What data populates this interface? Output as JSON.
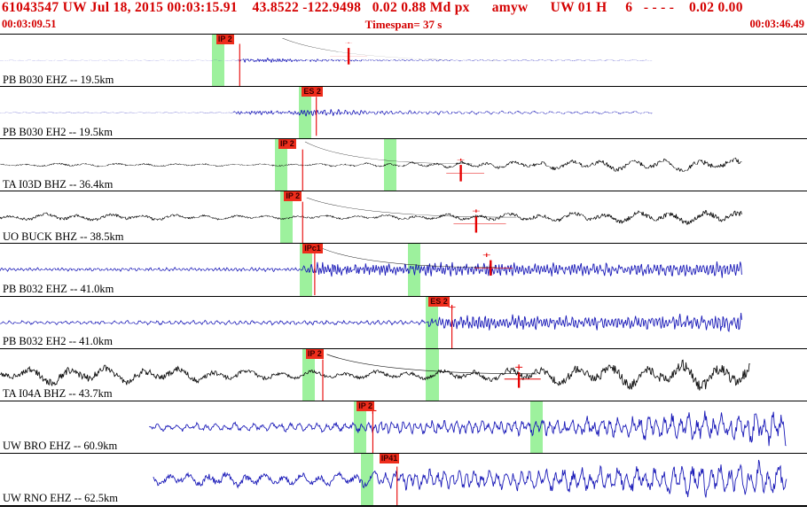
{
  "header": {
    "line1": "61043547 UW Jul 18, 2015 00:03:15.91    43.8522 -122.9498   0.02 0.88 Md px      amyw      UW 01 H     6   - - - -    0.02 0.00",
    "start_time": "00:03:09.51",
    "timespan": "Timespan=  37 s",
    "end_time": "00:03:46.49"
  },
  "colors": {
    "header_text": "#d40000",
    "trace_blue": "#1a1ab8",
    "trace_black": "#101010",
    "pick_band": "#9df19d",
    "flag_bg": "#ee2d1c",
    "flag_text": "#3a0000",
    "mark_red": "#e60000",
    "separator": "#000000",
    "background": "#ffffff"
  },
  "traces": [
    {
      "label": "PB B030 EHZ -- 19.5km",
      "color": "#1a1ab8",
      "seed": 11,
      "start": 0,
      "end": 0.808,
      "env": [
        [
          0,
          1.3
        ],
        [
          0.29,
          1.3
        ],
        [
          0.3,
          22
        ],
        [
          0.33,
          20
        ],
        [
          0.4,
          12
        ],
        [
          0.5,
          9
        ],
        [
          0.6,
          7
        ],
        [
          0.7,
          6
        ],
        [
          0.808,
          4
        ]
      ],
      "freq": [
        [
          0,
          0.1
        ],
        [
          0.29,
          0.1
        ],
        [
          0.3,
          0.38
        ],
        [
          0.42,
          0.3
        ],
        [
          0.55,
          0.16
        ],
        [
          0.7,
          0.09
        ],
        [
          0.808,
          0.07
        ]
      ],
      "bands": [
        {
          "x": 0.263,
          "w": 0.0155
        }
      ],
      "flags": [
        {
          "text": "IP 2",
          "x": 0.268
        }
      ],
      "marks": [
        {
          "type": "vline",
          "x": 0.297,
          "y1": 0.18,
          "y2": 1.0
        },
        {
          "type": "plus",
          "x": 0.432,
          "y": 0.16
        },
        {
          "type": "vtick",
          "x": 0.432,
          "y1": 0.26,
          "y2": 0.58
        },
        {
          "type": "hbar",
          "x1": 0.409,
          "x2": 0.455,
          "y": 0.42
        },
        {
          "type": "coda",
          "x1": 0.35,
          "y1": 0.07,
          "x2": 0.615,
          "y2": 0.5
        }
      ]
    },
    {
      "label": "PB B030 EH2 -- 19.5km",
      "color": "#1a1ab8",
      "seed": 22,
      "start": 0,
      "end": 0.808,
      "env": [
        [
          0,
          1.2
        ],
        [
          0.285,
          1.2
        ],
        [
          0.295,
          10
        ],
        [
          0.355,
          9
        ],
        [
          0.39,
          18
        ],
        [
          0.45,
          12
        ],
        [
          0.55,
          9
        ],
        [
          0.65,
          7
        ],
        [
          0.808,
          5
        ]
      ],
      "freq": [
        [
          0,
          0.1
        ],
        [
          0.285,
          0.1
        ],
        [
          0.3,
          0.34
        ],
        [
          0.45,
          0.22
        ],
        [
          0.6,
          0.12
        ],
        [
          0.808,
          0.08
        ]
      ],
      "bands": [
        {
          "x": 0.37,
          "w": 0.0155
        }
      ],
      "flags": [
        {
          "text": "ES 2",
          "x": 0.374
        }
      ],
      "marks": [
        {
          "type": "vline",
          "x": 0.392,
          "y1": 0.2,
          "y2": 0.95
        },
        {
          "type": "plus",
          "x": 0.392,
          "y": 0.18
        }
      ]
    },
    {
      "label": "TA I03D BHZ -- 36.4km",
      "color": "#101010",
      "seed": 33,
      "start": 0,
      "end": 0.92,
      "env": [
        [
          0,
          3
        ],
        [
          0.08,
          6
        ],
        [
          0.2,
          5
        ],
        [
          0.32,
          3.5
        ],
        [
          0.4,
          5
        ],
        [
          0.5,
          8
        ],
        [
          0.6,
          11
        ],
        [
          0.72,
          16
        ],
        [
          0.82,
          19
        ],
        [
          0.92,
          20
        ]
      ],
      "freq": [
        [
          0,
          0.03
        ],
        [
          0.35,
          0.03
        ],
        [
          0.45,
          0.04
        ],
        [
          0.7,
          0.03
        ],
        [
          0.92,
          0.024
        ]
      ],
      "bands": [
        {
          "x": 0.341,
          "w": 0.0155
        },
        {
          "x": 0.476,
          "w": 0.0155
        }
      ],
      "flags": [
        {
          "text": "IP 2",
          "x": 0.345
        }
      ],
      "marks": [
        {
          "type": "vline",
          "x": 0.375,
          "y1": 0.2,
          "y2": 1.0
        },
        {
          "type": "plus",
          "x": 0.571,
          "y": 0.4
        },
        {
          "type": "vtick",
          "x": 0.571,
          "y1": 0.5,
          "y2": 0.82
        },
        {
          "type": "hbar",
          "x1": 0.553,
          "x2": 0.6,
          "y": 0.66
        },
        {
          "type": "coda",
          "x1": 0.378,
          "y1": 0.05,
          "x2": 0.585,
          "y2": 0.48
        }
      ]
    },
    {
      "label": "UO BUCK BHZ -- 38.5km",
      "color": "#101010",
      "seed": 44,
      "start": 0,
      "end": 0.92,
      "env": [
        [
          0,
          6
        ],
        [
          0.06,
          9
        ],
        [
          0.18,
          8
        ],
        [
          0.3,
          5
        ],
        [
          0.42,
          4.5
        ],
        [
          0.55,
          7
        ],
        [
          0.68,
          11
        ],
        [
          0.8,
          14
        ],
        [
          0.92,
          17
        ]
      ],
      "freq": [
        [
          0,
          0.026
        ],
        [
          0.4,
          0.03
        ],
        [
          0.92,
          0.026
        ]
      ],
      "bands": [
        {
          "x": 0.347,
          "w": 0.0155
        }
      ],
      "flags": [
        {
          "text": "IP 2",
          "x": 0.352
        }
      ],
      "marks": [
        {
          "type": "vline",
          "x": 0.375,
          "y1": 0.2,
          "y2": 1.0
        },
        {
          "type": "plus",
          "x": 0.59,
          "y": 0.38
        },
        {
          "type": "vtick",
          "x": 0.59,
          "y1": 0.48,
          "y2": 0.8
        },
        {
          "type": "hbar",
          "x1": 0.562,
          "x2": 0.627,
          "y": 0.63
        },
        {
          "type": "coda",
          "x1": 0.38,
          "y1": 0.12,
          "x2": 0.64,
          "y2": 0.5
        }
      ]
    },
    {
      "label": "PB B032 EHZ -- 41.0km",
      "color": "#1a1ab8",
      "seed": 55,
      "start": 0,
      "end": 0.92,
      "env": [
        [
          0,
          3
        ],
        [
          0.37,
          3.5
        ],
        [
          0.395,
          13
        ],
        [
          0.45,
          10
        ],
        [
          0.55,
          12
        ],
        [
          0.62,
          14
        ],
        [
          0.72,
          11
        ],
        [
          0.82,
          12
        ],
        [
          0.92,
          15
        ]
      ],
      "freq": [
        [
          0,
          0.22
        ],
        [
          0.38,
          0.22
        ],
        [
          0.4,
          0.36
        ],
        [
          0.6,
          0.3
        ],
        [
          0.92,
          0.26
        ]
      ],
      "bands": [
        {
          "x": 0.371,
          "w": 0.0155
        },
        {
          "x": 0.505,
          "w": 0.0155
        }
      ],
      "flags": [
        {
          "text": "IPc1",
          "x": 0.375
        }
      ],
      "marks": [
        {
          "type": "vline",
          "x": 0.39,
          "y1": 0.18,
          "y2": 1.0
        },
        {
          "type": "plus",
          "x": 0.603,
          "y": 0.22
        },
        {
          "type": "vtick",
          "x": 0.608,
          "y1": 0.32,
          "y2": 0.62
        },
        {
          "type": "hbar",
          "x1": 0.588,
          "x2": 0.635,
          "y": 0.47
        },
        {
          "type": "coda",
          "x1": 0.395,
          "y1": 0.06,
          "x2": 0.615,
          "y2": 0.46
        }
      ]
    },
    {
      "label": "PB B032 EH2 -- 41.0km",
      "color": "#1a1ab8",
      "seed": 66,
      "start": 0,
      "end": 0.92,
      "env": [
        [
          0,
          2.5
        ],
        [
          0.3,
          3.5
        ],
        [
          0.52,
          3.5
        ],
        [
          0.545,
          9
        ],
        [
          0.6,
          12
        ],
        [
          0.7,
          10
        ],
        [
          0.8,
          11
        ],
        [
          0.92,
          15
        ]
      ],
      "freq": [
        [
          0,
          0.14
        ],
        [
          0.52,
          0.16
        ],
        [
          0.56,
          0.3
        ],
        [
          0.92,
          0.24
        ]
      ],
      "bands": [
        {
          "x": 0.527,
          "w": 0.0155
        }
      ],
      "flags": [
        {
          "text": "ES 2",
          "x": 0.531
        }
      ],
      "marks": [
        {
          "type": "vline",
          "x": 0.56,
          "y1": 0.22,
          "y2": 1.0
        },
        {
          "type": "plus",
          "x": 0.56,
          "y": 0.2
        }
      ]
    },
    {
      "label": "TA I04A BHZ -- 43.7km",
      "color": "#101010",
      "seed": 77,
      "start": 0,
      "end": 0.93,
      "env": [
        [
          0,
          8
        ],
        [
          0.07,
          13
        ],
        [
          0.18,
          12
        ],
        [
          0.3,
          7
        ],
        [
          0.42,
          5
        ],
        [
          0.52,
          6
        ],
        [
          0.62,
          9
        ],
        [
          0.72,
          14
        ],
        [
          0.82,
          18
        ],
        [
          0.93,
          20
        ]
      ],
      "freq": [
        [
          0,
          0.022
        ],
        [
          0.4,
          0.028
        ],
        [
          0.93,
          0.024
        ]
      ],
      "bands": [
        {
          "x": 0.375,
          "w": 0.0155
        },
        {
          "x": 0.528,
          "w": 0.0155
        }
      ],
      "flags": [
        {
          "text": "IP 2",
          "x": 0.379
        }
      ],
      "marks": [
        {
          "type": "vline",
          "x": 0.4,
          "y1": 0.2,
          "y2": 1.0
        },
        {
          "type": "plus",
          "x": 0.643,
          "y": 0.35
        },
        {
          "type": "vtick",
          "x": 0.643,
          "y1": 0.45,
          "y2": 0.75
        },
        {
          "type": "hbar",
          "x1": 0.625,
          "x2": 0.67,
          "y": 0.58
        },
        {
          "type": "coda",
          "x1": 0.405,
          "y1": 0.1,
          "x2": 0.665,
          "y2": 0.48
        }
      ]
    },
    {
      "label": "UW BRO EHZ -- 60.9km",
      "color": "#1a1ab8",
      "seed": 88,
      "start": 0.185,
      "end": 0.975,
      "env": [
        [
          0.185,
          4
        ],
        [
          0.3,
          5
        ],
        [
          0.4,
          5
        ],
        [
          0.46,
          7
        ],
        [
          0.55,
          8
        ],
        [
          0.65,
          9
        ],
        [
          0.75,
          12
        ],
        [
          0.85,
          16
        ],
        [
          0.975,
          19
        ]
      ],
      "freq": [
        [
          0.185,
          0.09
        ],
        [
          0.44,
          0.1
        ],
        [
          0.47,
          0.16
        ],
        [
          0.7,
          0.12
        ],
        [
          0.975,
          0.1
        ]
      ],
      "bands": [
        {
          "x": 0.438,
          "w": 0.0155
        },
        {
          "x": 0.657,
          "w": 0.0155
        }
      ],
      "flags": [
        {
          "text": "IP 2",
          "x": 0.442
        }
      ],
      "marks": [
        {
          "type": "vline",
          "x": 0.462,
          "y1": 0.2,
          "y2": 1.0
        },
        {
          "type": "plus",
          "x": 0.462,
          "y": 0.18
        }
      ]
    },
    {
      "label": "UW RNO EHZ -- 62.5km",
      "color": "#1a1ab8",
      "seed": 99,
      "start": 0.19,
      "end": 0.975,
      "env": [
        [
          0.19,
          6
        ],
        [
          0.28,
          8
        ],
        [
          0.38,
          6
        ],
        [
          0.46,
          8
        ],
        [
          0.52,
          11
        ],
        [
          0.62,
          10
        ],
        [
          0.72,
          12
        ],
        [
          0.85,
          16
        ],
        [
          0.975,
          17
        ]
      ],
      "freq": [
        [
          0.19,
          0.045
        ],
        [
          0.46,
          0.05
        ],
        [
          0.5,
          0.13
        ],
        [
          0.7,
          0.1
        ],
        [
          0.975,
          0.09
        ]
      ],
      "bands": [
        {
          "x": 0.447,
          "w": 0.0155
        }
      ],
      "flags": [
        {
          "text": "IP41",
          "x": 0.47
        }
      ],
      "marks": [
        {
          "type": "vline",
          "x": 0.492,
          "y1": 0.25,
          "y2": 1.0
        }
      ]
    }
  ]
}
